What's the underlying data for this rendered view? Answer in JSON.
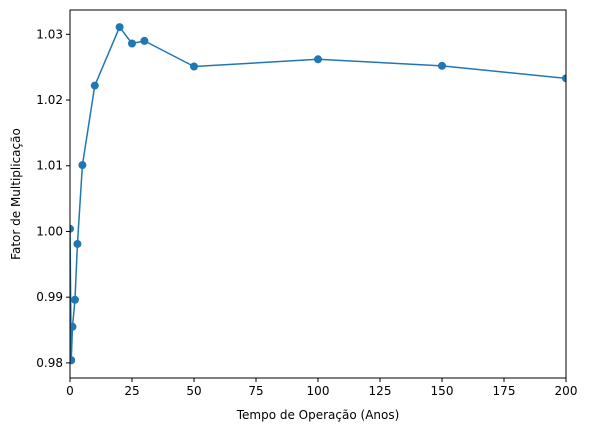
{
  "chart_data": {
    "type": "line",
    "title": "",
    "xlabel": "Tempo de Operação (Anos)",
    "ylabel": "Fator de Multiplicação",
    "xlim": [
      0,
      200
    ],
    "ylim": [
      0.9777,
      1.0337
    ],
    "x_ticks": [
      0,
      25,
      50,
      75,
      100,
      125,
      150,
      175,
      200
    ],
    "x_tick_labels": [
      "0",
      "25",
      "50",
      "75",
      "100",
      "125",
      "150",
      "175",
      "200"
    ],
    "y_ticks": [
      0.98,
      0.99,
      1.0,
      1.01,
      1.02,
      1.03
    ],
    "y_tick_labels": [
      "0.98",
      "0.99",
      "1.00",
      "1.01",
      "1.02",
      "1.03"
    ],
    "grid": false,
    "series": [
      {
        "color": "#1f77b4",
        "marker": "circle",
        "x": [
          0,
          0.5,
          1,
          2,
          3,
          5,
          10,
          20,
          25,
          30,
          50,
          100,
          150,
          200
        ],
        "y": [
          1.0004,
          0.9804,
          0.9855,
          0.9896,
          0.9981,
          1.0101,
          1.0222,
          1.0311,
          1.0286,
          1.029,
          1.0251,
          1.0262,
          1.0252,
          1.0233
        ]
      }
    ]
  }
}
